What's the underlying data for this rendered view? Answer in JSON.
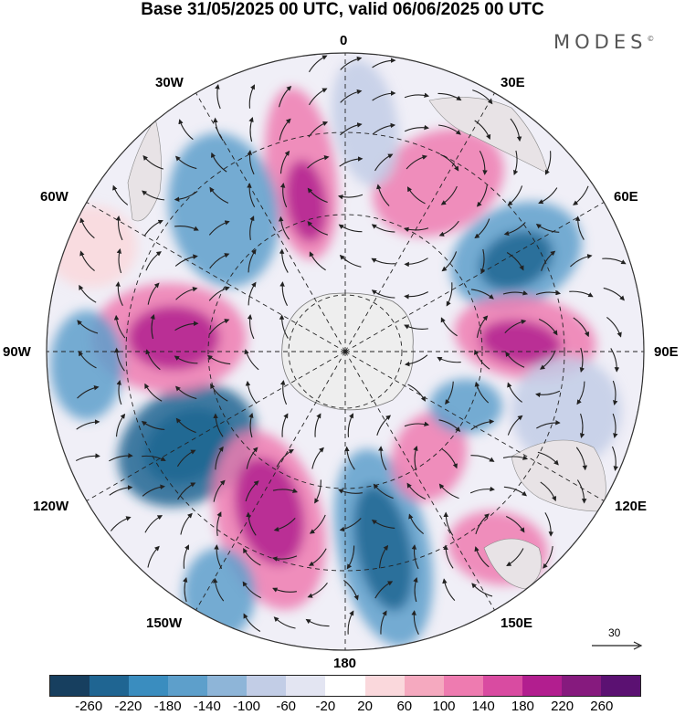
{
  "title": "Base 31/05/2025 00 UTC, valid 06/06/2025 00 UTC",
  "brand": "MODES",
  "brand_mark": "©",
  "longitude_labels": {
    "lon_0": "0",
    "lon_30e": "30E",
    "lon_60e": "60E",
    "lon_90e": "90E",
    "lon_120e": "120E",
    "lon_150e": "150E",
    "lon_180": "180",
    "lon_150w": "150W",
    "lon_120w": "120W",
    "lon_90w": "90W",
    "lon_60w": "60W",
    "lon_30w": "30W"
  },
  "reference_vector": {
    "value": "30"
  },
  "colorbar": {
    "ticks": [
      "-260",
      "-220",
      "-180",
      "-140",
      "-100",
      "-60",
      "-20",
      "20",
      "60",
      "100",
      "140",
      "180",
      "220",
      "260"
    ],
    "colors": [
      "#173f5f",
      "#1f6592",
      "#3a8dbf",
      "#5d9fcb",
      "#8eb5d8",
      "#c2cde6",
      "#e3e5f2",
      "#ffffff",
      "#fad8dc",
      "#f5a9bf",
      "#ee7bb0",
      "#d94ba1",
      "#b21e8f",
      "#861a7e",
      "#5b1172"
    ]
  },
  "map": {
    "projection": "south polar stereographic",
    "shading_colors": {
      "strong_neg": "#1f6592",
      "mid_neg": "#5d9fcb",
      "weak_neg": "#c2cde6",
      "strong_pos": "#b21e8f",
      "mid_pos": "#ee7bb0",
      "weak_pos": "#fad8dc",
      "land": "#eeeeee"
    },
    "anomaly_centres": [
      {
        "name": "west-of-south-america-low",
        "sign": "negative",
        "strength": "strong"
      },
      {
        "name": "south-pacific-high",
        "sign": "positive",
        "strength": "strong"
      },
      {
        "name": "tasman-low",
        "sign": "negative",
        "strength": "strong"
      },
      {
        "name": "indian-ocean-low",
        "sign": "negative",
        "strength": "strong"
      },
      {
        "name": "indian-ocean-high",
        "sign": "positive",
        "strength": "strong"
      },
      {
        "name": "southeast-pacific-high",
        "sign": "positive",
        "strength": "strong"
      },
      {
        "name": "south-atlantic-high",
        "sign": "positive",
        "strength": "strong"
      },
      {
        "name": "south-atlantic-low",
        "sign": "negative",
        "strength": "moderate"
      },
      {
        "name": "southern-africa-high",
        "sign": "positive",
        "strength": "moderate"
      },
      {
        "name": "southern-australia-high",
        "sign": "positive",
        "strength": "moderate"
      },
      {
        "name": "new-zealand-high",
        "sign": "positive",
        "strength": "moderate"
      }
    ]
  }
}
